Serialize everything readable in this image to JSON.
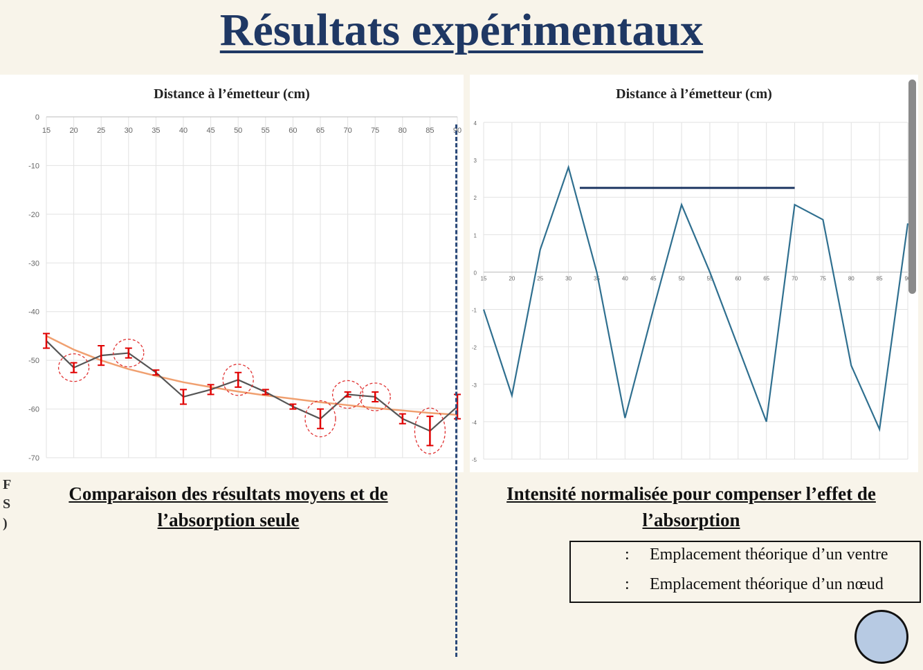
{
  "page": {
    "title": "Résultats expérimentaux",
    "title_color": "#1f3864",
    "side_letters": [
      "F",
      "S",
      ")"
    ]
  },
  "left_panel": {
    "caption_line1": "Comparaison des résultats moyens et de",
    "caption_line2": "l’absorption seule"
  },
  "right_panel": {
    "caption_line1": "Intensité normalisée pour compenser l’effet de",
    "caption_line2": "l’absorption"
  },
  "legend": {
    "items": [
      {
        "separator": ":",
        "label": "Emplacement théorique d’un ventre"
      },
      {
        "separator": ":",
        "label": "Emplacement théorique d’un nœud"
      }
    ]
  },
  "chart_data": [
    {
      "type": "line",
      "title": "",
      "xlabel": "Distance à l’émetteur (cm)",
      "ylabel": "",
      "x": [
        15,
        20,
        25,
        30,
        35,
        40,
        45,
        50,
        55,
        60,
        65,
        70,
        75,
        80,
        85,
        90
      ],
      "xlim": [
        15,
        90
      ],
      "ylim": [
        -70,
        0
      ],
      "yticks": [
        0,
        -10,
        -20,
        -30,
        -40,
        -50,
        -60,
        -70
      ],
      "x_axis_position": "top",
      "grid": true,
      "series": [
        {
          "values": [
            -46,
            -51.5,
            -49,
            -48.5,
            -52.5,
            -57.5,
            -56,
            -54,
            -56.5,
            -59.5,
            -62,
            -57,
            -57.5,
            -62,
            -64.5,
            -59.5
          ],
          "error": [
            1.5,
            1,
            2,
            1,
            0.5,
            1.5,
            1,
            1.5,
            0.5,
            0.5,
            2,
            0.5,
            1,
            1,
            3,
            2.5
          ],
          "color": "#555555",
          "error_color": "#e00000"
        },
        {
          "values": [
            -45,
            -47.8,
            -50,
            -51.8,
            -53.2,
            -54.5,
            -55.5,
            -56.4,
            -57.2,
            -57.9,
            -58.6,
            -59.2,
            -59.8,
            -60.3,
            -60.8,
            -61.2
          ],
          "color": "#f0a070"
        }
      ],
      "circled_x": [
        20,
        30,
        50,
        65,
        70,
        75,
        85
      ],
      "circle_color": "#e03030"
    },
    {
      "type": "line",
      "title": "",
      "xlabel": "Distance à l’émetteur (cm)",
      "ylabel": "",
      "x": [
        15,
        20,
        25,
        30,
        35,
        40,
        45,
        50,
        55,
        60,
        65,
        70,
        75,
        80,
        85,
        90
      ],
      "xlim": [
        15,
        90
      ],
      "ylim": [
        -5,
        4
      ],
      "yticks": [
        4,
        3,
        2,
        1,
        0,
        -1,
        -2,
        -3,
        -4,
        -5
      ],
      "x_axis_position": "zero",
      "grid": true,
      "series": [
        {
          "values": [
            -1,
            -3.3,
            0.6,
            2.8,
            0,
            -3.9,
            -1,
            1.8,
            0,
            -2,
            -4,
            1.8,
            1.4,
            -2.5,
            -4.2,
            1.3
          ],
          "color": "#2f6f8f"
        }
      ],
      "annotation_line": {
        "x_start": 32,
        "x_end": 70,
        "y": 2.25,
        "color": "#1f3864"
      }
    }
  ]
}
